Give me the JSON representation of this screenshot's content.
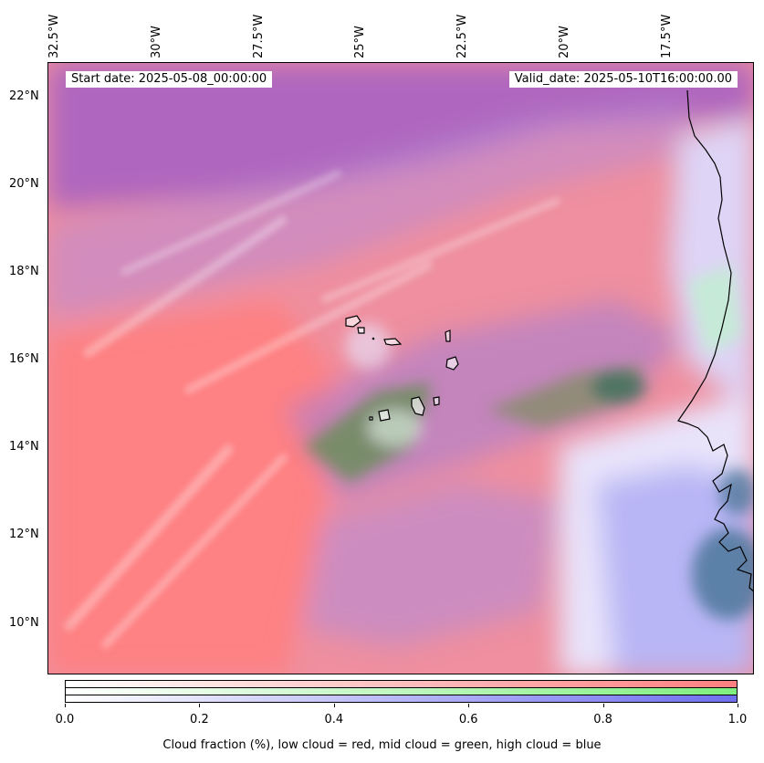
{
  "map": {
    "start_date": "Start date: 2025-05-08_00:00:00",
    "valid_date": "Valid_date: 2025-05-10T16:00:00.00",
    "lon_labels": [
      "32.5°W",
      "30°W",
      "27.5°W",
      "25°W",
      "22.5°W",
      "20°W",
      "17.5°W"
    ],
    "lat_labels": [
      "22°N",
      "20°N",
      "18°N",
      "16°N",
      "14°N",
      "12°N",
      "10°N"
    ],
    "layers": {
      "low_cloud_color": "#ff7f7f",
      "mid_cloud_color": "#7fef7f",
      "high_cloud_color": "#6f6fef"
    }
  },
  "colorbar": {
    "ticks": [
      "0.0",
      "0.2",
      "0.4",
      "0.6",
      "0.8",
      "1.0"
    ],
    "label": "Cloud fraction (%), low cloud = red, mid cloud = green, high cloud = blue",
    "range": [
      0.0,
      1.0
    ]
  }
}
